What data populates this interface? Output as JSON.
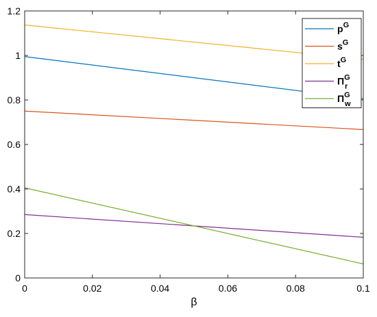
{
  "chart_data": {
    "type": "line",
    "title": "",
    "xlabel": "β",
    "ylabel": "",
    "xlim": [
      0,
      0.1
    ],
    "ylim": [
      0,
      1.2
    ],
    "x_ticks": [
      0,
      0.02,
      0.04,
      0.06,
      0.08,
      0.1
    ],
    "x_tick_labels": [
      "0",
      "0.02",
      "0.04",
      "0.06",
      "0.08",
      "0.1"
    ],
    "y_ticks": [
      0,
      0.2,
      0.4,
      0.6,
      0.8,
      1,
      1.2
    ],
    "y_tick_labels": [
      "0",
      "0.2",
      "0.4",
      "0.6",
      "0.8",
      "1",
      "1.2"
    ],
    "grid": false,
    "legend_position": "top-right",
    "x": [
      0,
      0.1
    ],
    "series": [
      {
        "name": "p",
        "sup": "G",
        "sub": "",
        "color": "#0072BD",
        "values": [
          0.995,
          0.805
        ]
      },
      {
        "name": "s",
        "sup": "G",
        "sub": "",
        "color": "#D95319",
        "values": [
          0.75,
          0.667
        ]
      },
      {
        "name": "t",
        "sup": "G",
        "sub": "",
        "color": "#EDB120",
        "values": [
          1.137,
          0.983
        ]
      },
      {
        "name": "Π",
        "sup": "G",
        "sub": "r",
        "color": "#7E2F8E",
        "values": [
          0.285,
          0.183
        ]
      },
      {
        "name": "Π",
        "sup": "G",
        "sub": "w",
        "color": "#77AC30",
        "values": [
          0.405,
          0.063
        ]
      }
    ]
  }
}
